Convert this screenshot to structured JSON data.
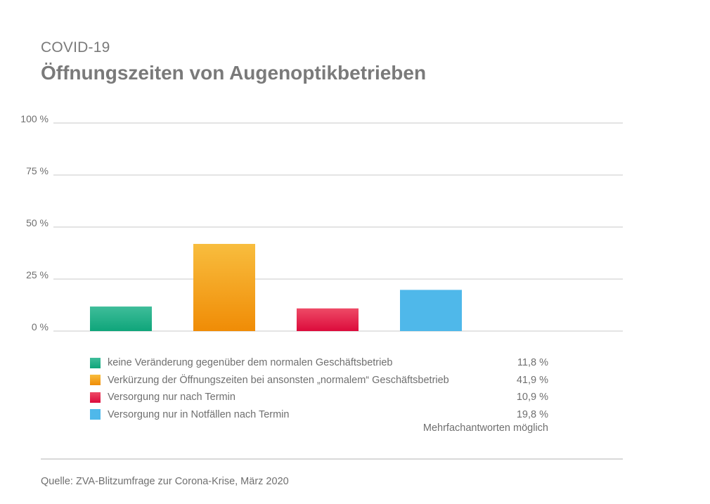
{
  "header": {
    "kicker": "COVID-19",
    "title": "Öffnungszeiten von Augenoptikbetrieben"
  },
  "chart_data": {
    "type": "bar",
    "categories": [
      "keine Veränderung gegenüber dem normalen Geschäftsbetrieb",
      "Verkürzung der Öffnungszeiten bei ansonsten „normalem“ Geschäftsbetrieb",
      "Versorgung nur nach Termin",
      "Versorgung nur in Notfällen nach Termin"
    ],
    "values": [
      11.8,
      41.9,
      10.9,
      19.8
    ],
    "value_labels": [
      "11,8 %",
      "41,9 %",
      "10,9 %",
      "19,8 %"
    ],
    "ylim": [
      0,
      100
    ],
    "yticks": [
      0,
      25,
      50,
      75,
      100
    ],
    "ytick_labels": [
      "0 %",
      "25 %",
      "50 %",
      "75 %",
      "100 %"
    ],
    "grid": true,
    "legend_position": "bottom",
    "colors": [
      {
        "top": "#3fbd9a",
        "bottom": "#0fa57a"
      },
      {
        "top": "#f8bd3e",
        "bottom": "#f08c06"
      },
      {
        "top": "#ee4a66",
        "bottom": "#dc0b3c"
      },
      {
        "top": "#4fb8ea",
        "bottom": "#4fb8ea"
      }
    ]
  },
  "note": "Mehrfachantworten möglich",
  "source": "Quelle: ZVA-Blitzumfrage zur Corona-Krise, März 2020"
}
